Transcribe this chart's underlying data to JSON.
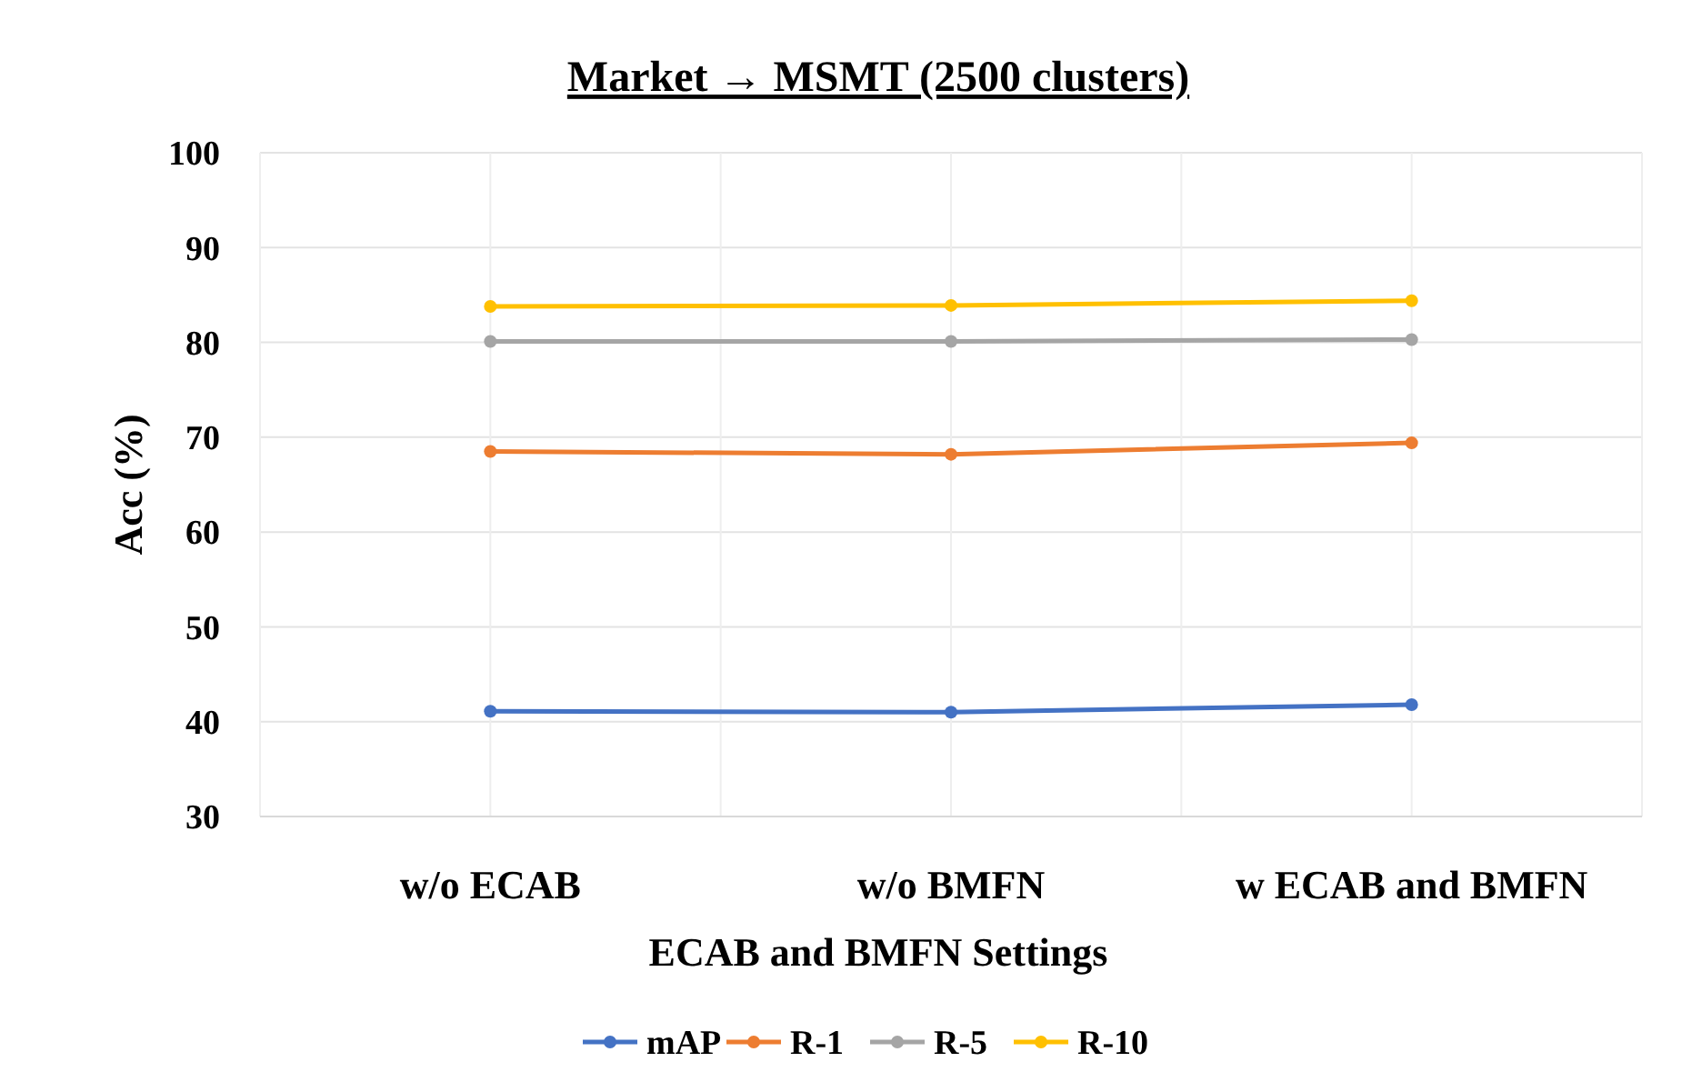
{
  "chart_data": {
    "type": "line",
    "title": "Market → MSMT (2500 clusters)",
    "xlabel": "ECAB and BMFN Settings",
    "ylabel": "Acc (%)",
    "categories": [
      "w/o ECAB",
      "w/o BMFN",
      "w ECAB and BMFN"
    ],
    "series": [
      {
        "name": "mAP",
        "color": "#4472c4",
        "values": [
          41.1,
          41.0,
          41.8
        ]
      },
      {
        "name": "R-1",
        "color": "#ed7d31",
        "values": [
          68.5,
          68.2,
          69.4
        ]
      },
      {
        "name": "R-5",
        "color": "#a5a5a5",
        "values": [
          80.1,
          80.1,
          80.3
        ]
      },
      {
        "name": "R-10",
        "color": "#ffc000",
        "values": [
          83.8,
          83.9,
          84.4
        ]
      }
    ],
    "ylim": [
      30,
      100
    ],
    "yticks": [
      30,
      40,
      50,
      60,
      70,
      80,
      90,
      100
    ],
    "grid": true,
    "legend": "bottom",
    "marker": "circle",
    "line_style": "solid"
  }
}
